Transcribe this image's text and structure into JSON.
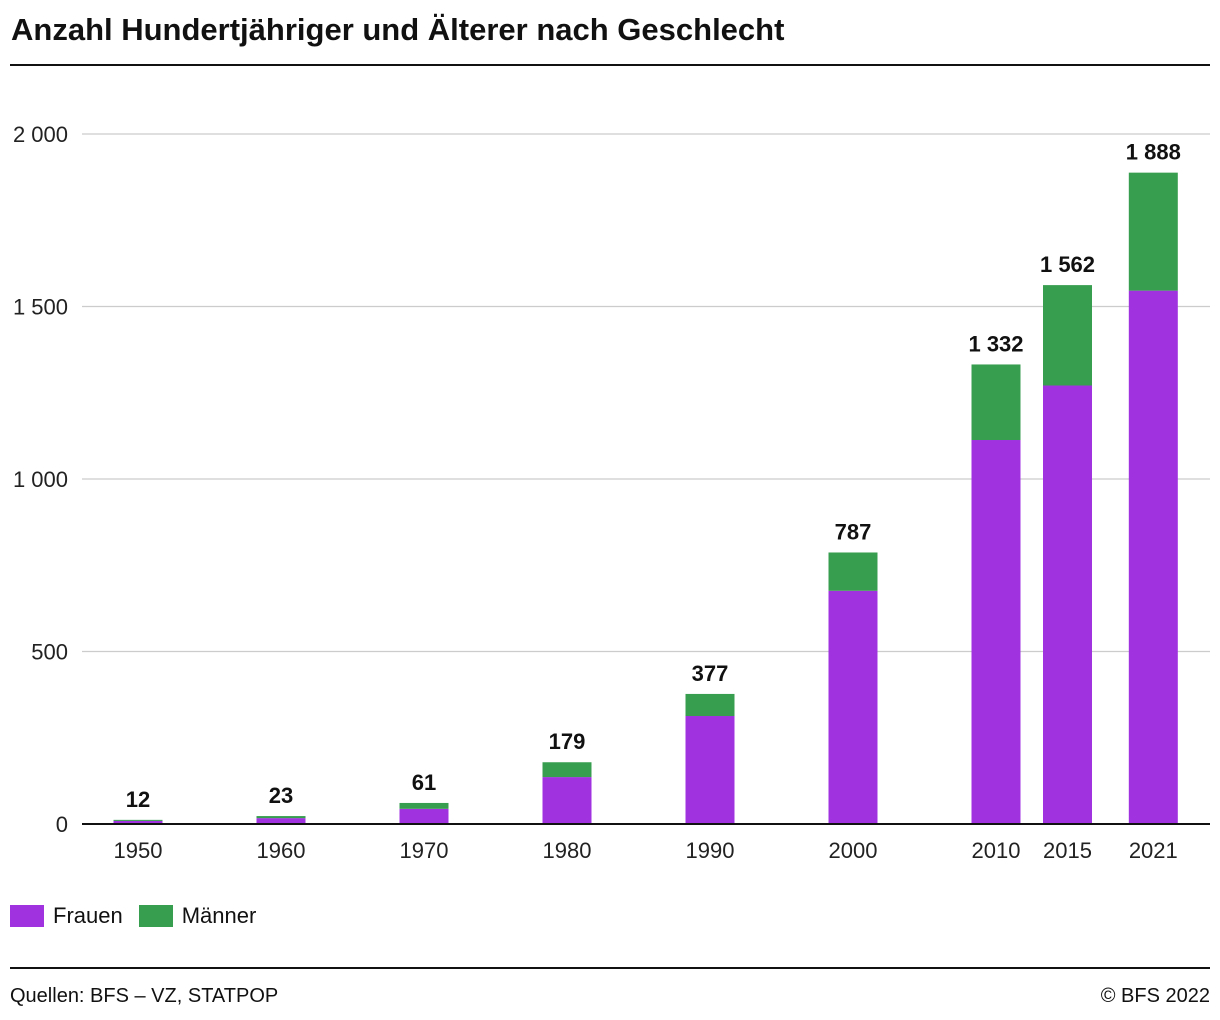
{
  "title": "Anzahl Hundertjähriger und Älterer nach Geschlecht",
  "colors": {
    "frauen": "#a032e0",
    "maenner": "#389e4f",
    "grid": "#cccccc",
    "axis": "#111111"
  },
  "legend": [
    {
      "label": "Frauen",
      "color": "#a032e0"
    },
    {
      "label": "Männer",
      "color": "#389e4f"
    }
  ],
  "chart_data": {
    "type": "bar",
    "stacked": true,
    "x_axis_type": "time",
    "title": "Anzahl Hundertjähriger und Älterer nach Geschlecht",
    "xlabel": "",
    "ylabel": "",
    "ylim": [
      0,
      2000
    ],
    "yticks": [
      0,
      500,
      1000,
      1500,
      2000
    ],
    "ytick_labels": [
      "0",
      "500",
      "1 000",
      "1 500",
      "2 000"
    ],
    "grid": true,
    "legend_position": "bottom-left",
    "categories": [
      "1950",
      "1960",
      "1970",
      "1980",
      "1990",
      "2000",
      "2010",
      "2015",
      "2021"
    ],
    "series": [
      {
        "name": "Frauen",
        "values": [
          9,
          17,
          44,
          136,
          313,
          676,
          1113,
          1271,
          1546
        ]
      },
      {
        "name": "Männer",
        "values": [
          3,
          6,
          17,
          43,
          64,
          111,
          219,
          291,
          342
        ]
      }
    ],
    "totals": [
      12,
      23,
      61,
      179,
      377,
      787,
      1332,
      1562,
      1888
    ],
    "total_labels": [
      "12",
      "23",
      "61",
      "179",
      "377",
      "787",
      "1 332",
      "1 562",
      "1 888"
    ]
  },
  "footer": {
    "source": "Quellen: BFS – VZ, STATPOP",
    "copyright": "© BFS 2022"
  }
}
